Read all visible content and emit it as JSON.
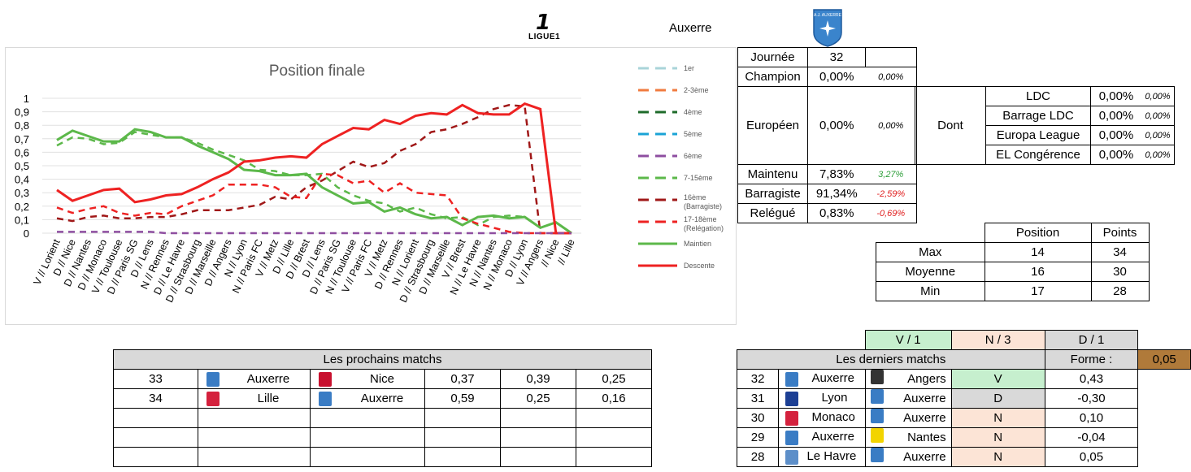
{
  "header": {
    "league_logo_text": "LIGUE1",
    "team_name": "Auxerre",
    "team_crest_text": "A.J. AUXERRE"
  },
  "stats": {
    "journee_label": "Journée",
    "journee_value": "32",
    "rows": [
      {
        "label": "Champion",
        "value": "0,00%",
        "delta": "0,00%",
        "tone": "neutral"
      },
      {
        "label": "Européen",
        "value": "0,00%",
        "delta": "0,00%",
        "tone": "neutral"
      },
      {
        "label": "Maintenu",
        "value": "7,83%",
        "delta": "3,27%",
        "tone": "pos"
      },
      {
        "label": "Barragiste",
        "value": "91,34%",
        "delta": "-2,59%",
        "tone": "neg"
      },
      {
        "label": "Relégué",
        "value": "0,83%",
        "delta": "-0,69%",
        "tone": "neg"
      }
    ],
    "dont_label": "Dont",
    "dont_rows": [
      {
        "label": "LDC",
        "value": "0,00%",
        "delta": "0,00%"
      },
      {
        "label": "Barrage LDC",
        "value": "0,00%",
        "delta": "0,00%"
      },
      {
        "label": "Europa League",
        "value": "0,00%",
        "delta": "0,00%"
      },
      {
        "label": "EL Congérence",
        "value": "0,00%",
        "delta": "0,00%"
      }
    ]
  },
  "position_table": {
    "headers": [
      "Position",
      "Points"
    ],
    "rows": [
      {
        "label": "Max",
        "position": "14",
        "points": "34"
      },
      {
        "label": "Moyenne",
        "position": "16",
        "points": "30"
      },
      {
        "label": "Min",
        "position": "17",
        "points": "28"
      }
    ]
  },
  "next_matches": {
    "title": "Les prochains matchs",
    "rows": [
      {
        "day": "33",
        "home": "Auxerre",
        "away": "Nice",
        "p1": "0,37",
        "pn": "0,39",
        "p2": "0,25",
        "home_color": "#3a7cc4",
        "away_color": "#c8102e"
      },
      {
        "day": "34",
        "home": "Lille",
        "away": "Auxerre",
        "p1": "0,59",
        "pn": "0,25",
        "p2": "0,16",
        "home_color": "#d4213d",
        "away_color": "#3a7cc4"
      }
    ]
  },
  "last_matches": {
    "summary": {
      "v": "V / 1",
      "n": "N / 3",
      "d": "D / 1"
    },
    "title": "Les derniers matchs",
    "forme_label": "Forme :",
    "forme_value": "0,05",
    "rows": [
      {
        "day": "32",
        "home": "Auxerre",
        "away": "Angers",
        "result": "V",
        "score": "0,43",
        "home_color": "#3a7cc4",
        "away_color": "#333333"
      },
      {
        "day": "31",
        "home": "Lyon",
        "away": "Auxerre",
        "result": "D",
        "score": "-0,30",
        "home_color": "#1c3f94",
        "away_color": "#3a7cc4"
      },
      {
        "day": "30",
        "home": "Monaco",
        "away": "Auxerre",
        "result": "N",
        "score": "0,10",
        "home_color": "#d4213d",
        "away_color": "#3a7cc4"
      },
      {
        "day": "29",
        "home": "Auxerre",
        "away": "Nantes",
        "result": "N",
        "score": "-0,04",
        "home_color": "#3a7cc4",
        "away_color": "#f2d400"
      },
      {
        "day": "28",
        "home": "Le Havre",
        "away": "Auxerre",
        "result": "N",
        "score": "0,05",
        "home_color": "#5d8fc9",
        "away_color": "#3a7cc4"
      }
    ]
  },
  "chart_data": {
    "type": "line",
    "title": "Position finale",
    "ylim": [
      0,
      1
    ],
    "yticks": [
      "0",
      "0,1",
      "0,2",
      "0,3",
      "0,4",
      "0,5",
      "0,6",
      "0,7",
      "0,8",
      "0,9",
      "1"
    ],
    "categories": [
      "V // Lorient",
      "D // Nice",
      "D // Nantes",
      "D // Monaco",
      "V // Toulouse",
      "D // Paris SG",
      "D // Lens",
      "N // Rennes",
      "D // Le Havre",
      "D // Strasbourg",
      "D // Marseille",
      "D // Angers",
      "N // Lyon",
      "N // Paris FC",
      "V // Metz",
      "D // Lille",
      "D // Brest",
      "D // Lens",
      "D // Paris SG",
      "N // Toulouse",
      "V // Paris FC",
      "V // Metz",
      "D // Rennes",
      "N // Lorient",
      "D // Strasbourg",
      "D // Marseille",
      "V // Brest",
      "N // Le Havre",
      "N // Nantes",
      "N // Monaco",
      "D // Lyon",
      "V // Angers",
      "// Nice",
      "// Lille"
    ],
    "legend": [
      "1er",
      "2-3ème",
      "4ème",
      "5ème",
      "6ème",
      "7-15ème",
      "16ème (Barragiste)",
      "17-18ème (Relégation)",
      "Maintien",
      "Descente"
    ],
    "legend_colors": [
      "#a9d4d9",
      "#f07b3f",
      "#1e6b2a",
      "#1aa3d6",
      "#8e4ea0",
      "#5cb84a",
      "#a01818",
      "#ee2222",
      "#5cb84a",
      "#ee2222"
    ],
    "legend_dashed": [
      true,
      true,
      true,
      true,
      true,
      true,
      true,
      true,
      false,
      false
    ],
    "series": [
      {
        "name": "7-15ème",
        "color": "#5cb84a",
        "dashed": true,
        "values": [
          0.65,
          0.71,
          0.7,
          0.66,
          0.67,
          0.75,
          0.73,
          0.71,
          0.71,
          0.67,
          0.62,
          0.58,
          0.54,
          0.47,
          0.46,
          0.43,
          0.43,
          0.44,
          0.34,
          0.28,
          0.24,
          0.22,
          0.16,
          0.19,
          0.14,
          0.11,
          0.12,
          0.06,
          0.12,
          0.13,
          0.12,
          0.04,
          0.08,
          0.0
        ]
      },
      {
        "name": "16ème (Barragiste)",
        "color": "#a01818",
        "dashed": true,
        "values": [
          0.11,
          0.09,
          0.12,
          0.13,
          0.11,
          0.11,
          0.12,
          0.12,
          0.14,
          0.17,
          0.17,
          0.17,
          0.19,
          0.21,
          0.27,
          0.25,
          0.34,
          0.39,
          0.46,
          0.53,
          0.49,
          0.52,
          0.61,
          0.66,
          0.75,
          0.77,
          0.81,
          0.86,
          0.92,
          0.95,
          0.94,
          0.0,
          0.0,
          0.0
        ]
      },
      {
        "name": "17-18ème (Relégation)",
        "color": "#ee2222",
        "dashed": true,
        "values": [
          0.19,
          0.15,
          0.18,
          0.2,
          0.15,
          0.13,
          0.15,
          0.14,
          0.2,
          0.24,
          0.28,
          0.36,
          0.36,
          0.36,
          0.34,
          0.27,
          0.26,
          0.44,
          0.43,
          0.37,
          0.39,
          0.3,
          0.37,
          0.3,
          0.29,
          0.28,
          0.11,
          0.07,
          0.04,
          0.01,
          0.0,
          0.0,
          0.0,
          0.0
        ]
      },
      {
        "name": "Maintien",
        "color": "#5cb84a",
        "dashed": false,
        "values": [
          0.69,
          0.76,
          0.72,
          0.68,
          0.68,
          0.77,
          0.75,
          0.71,
          0.71,
          0.65,
          0.6,
          0.55,
          0.47,
          0.46,
          0.43,
          0.43,
          0.44,
          0.34,
          0.28,
          0.22,
          0.23,
          0.16,
          0.19,
          0.14,
          0.11,
          0.12,
          0.06,
          0.12,
          0.13,
          0.11,
          0.12,
          0.04,
          0.08,
          0.0
        ]
      },
      {
        "name": "Descente",
        "color": "#ee2222",
        "dashed": false,
        "values": [
          0.32,
          0.24,
          0.28,
          0.32,
          0.33,
          0.23,
          0.25,
          0.28,
          0.29,
          0.34,
          0.4,
          0.45,
          0.53,
          0.54,
          0.56,
          0.57,
          0.56,
          0.66,
          0.72,
          0.78,
          0.77,
          0.84,
          0.81,
          0.87,
          0.89,
          0.88,
          0.95,
          0.89,
          0.88,
          0.88,
          0.96,
          0.92,
          0.0,
          0.0
        ]
      },
      {
        "name": "6ème",
        "color": "#8e4ea0",
        "dashed": true,
        "values": [
          0.01,
          0.01,
          0.01,
          0.01,
          0.01,
          0.01,
          0.01,
          0.0,
          0.0,
          0.0,
          0.0,
          0.0,
          0.0,
          0.0,
          0.0,
          0.0,
          0.0,
          0.0,
          0.0,
          0.0,
          0.0,
          0.0,
          0.0,
          0.0,
          0.0,
          0.0,
          0.0,
          0.0,
          0.0,
          0.0,
          0.0,
          0.0,
          0.0,
          0.0
        ]
      }
    ]
  }
}
